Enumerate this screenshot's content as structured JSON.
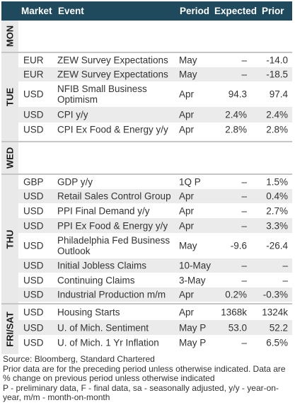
{
  "header": {
    "market": "Market",
    "event": "Event",
    "period": "Period",
    "expected": "Expected",
    "prior": "Prior"
  },
  "days": [
    {
      "day": "MON",
      "rows": []
    },
    {
      "day": "TUE",
      "rows": [
        {
          "market": "EUR",
          "event": "ZEW Survey Expectations",
          "period": "May",
          "expected": "–",
          "prior": "-14.0"
        },
        {
          "market": "EUR",
          "event": "ZEW Survey Expectations",
          "period": "May",
          "expected": "–",
          "prior": "-18.5"
        },
        {
          "market": "USD",
          "event": "NFIB Small Business Optimism",
          "period": "Apr",
          "expected": "94.3",
          "prior": "97.4"
        },
        {
          "market": "USD",
          "event": "CPI y/y",
          "period": "Apr",
          "expected": "2.4%",
          "prior": "2.4%"
        },
        {
          "market": "USD",
          "event": "CPI Ex Food & Energy y/y",
          "period": "Apr",
          "expected": "2.8%",
          "prior": "2.8%"
        }
      ]
    },
    {
      "day": "WED",
      "rows": []
    },
    {
      "day": "THU",
      "rows": [
        {
          "market": "GBP",
          "event": "GDP y/y",
          "period": "1Q P",
          "expected": "–",
          "prior": "1.5%"
        },
        {
          "market": "USD",
          "event": "Retail Sales Control Group",
          "period": "Apr",
          "expected": "–",
          "prior": "0.4%"
        },
        {
          "market": "USD",
          "event": "PPI Final Demand y/y",
          "period": "Apr",
          "expected": "–",
          "prior": "2.7%"
        },
        {
          "market": "USD",
          "event": "PPI Ex Food & Energy y/y",
          "period": "Apr",
          "expected": "–",
          "prior": "3.3%"
        },
        {
          "market": "USD",
          "event": "Philadelphia Fed Business Outlook",
          "period": "May",
          "expected": "-9.6",
          "prior": "-26.4"
        },
        {
          "market": "USD",
          "event": "Initial Jobless Claims",
          "period": "10-May",
          "expected": "–",
          "prior": "–"
        },
        {
          "market": "USD",
          "event": "Continuing Claims",
          "period": "3-May",
          "expected": "–",
          "prior": "–"
        },
        {
          "market": "USD",
          "event": "Industrial Production m/m",
          "period": "Apr",
          "expected": "0.2%",
          "prior": "-0.3%"
        }
      ]
    },
    {
      "day": "FRI/SAT",
      "rows": [
        {
          "market": "USD",
          "event": "Housing Starts",
          "period": "Apr",
          "expected": "1368k",
          "prior": "1324k"
        },
        {
          "market": "USD",
          "event": "U. of Mich. Sentiment",
          "period": "May P",
          "expected": "53.0",
          "prior": "52.2"
        },
        {
          "market": "USD",
          "event": "U. of Mich. 1 Yr Inflation",
          "period": "May P",
          "expected": "–",
          "prior": "6.5%"
        }
      ]
    }
  ],
  "footer": {
    "source": "Source: Bloomberg, Standard Chartered",
    "note": "Prior data are for the preceding period unless otherwise indicated. Data are % change on previous period unless otherwise indicated",
    "legend": "P - preliminary data, F - final data, sa - seasonally adjusted, y/y - year-on-year, m/m - month-on-month"
  }
}
